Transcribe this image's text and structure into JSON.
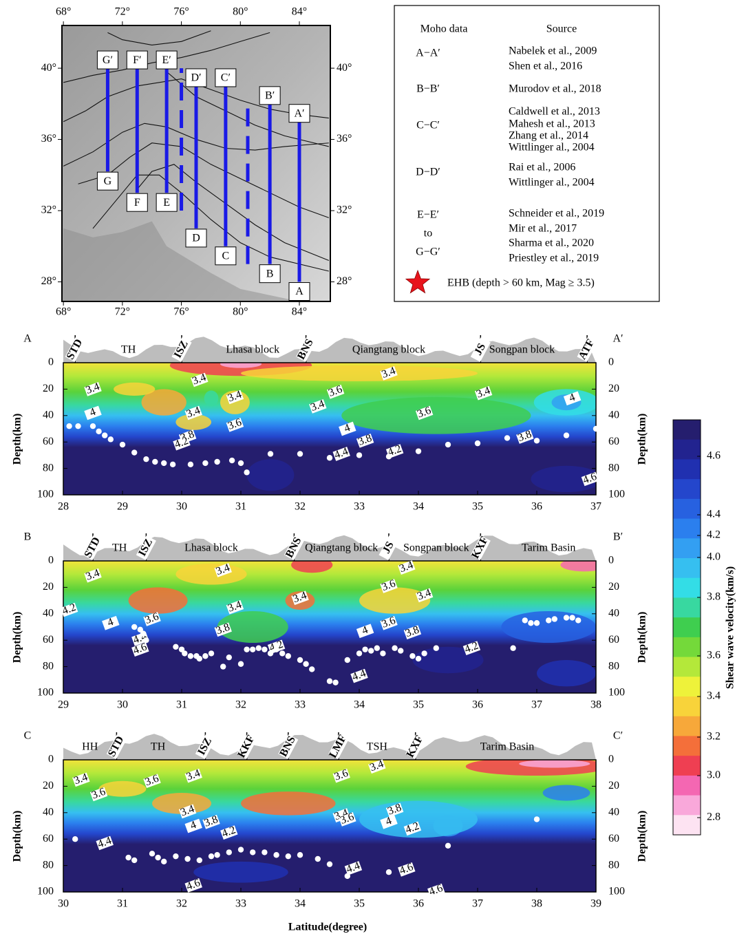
{
  "chart_data": [
    {
      "type": "map",
      "xlim": [
        67.9,
        86.1
      ],
      "ylim": [
        26.9,
        42.4
      ],
      "xticks": [
        {
          "value": 68,
          "label": "68°"
        },
        {
          "value": 72,
          "label": "72°"
        },
        {
          "value": 76,
          "label": "76°"
        },
        {
          "value": 80,
          "label": "80°"
        },
        {
          "value": 84,
          "label": "84°"
        }
      ],
      "yticks": [
        {
          "value": 28,
          "label": "28°"
        },
        {
          "value": 32,
          "label": "32°"
        },
        {
          "value": 36,
          "label": "36°"
        },
        {
          "value": 40,
          "label": "40°"
        }
      ],
      "profile_color": "#1a1ae6",
      "profiles": [
        {
          "start": "G",
          "end": "G′",
          "lon": 71,
          "lat": [
            34.2,
            40
          ]
        },
        {
          "start": "F",
          "end": "F′",
          "lon": 73,
          "lat": [
            33,
            40
          ]
        },
        {
          "start": "E",
          "end": "E′",
          "lon": 75,
          "lat": [
            33,
            40
          ]
        },
        {
          "start": "D",
          "end": "D′",
          "lon": 77,
          "lat": [
            31,
            39
          ]
        },
        {
          "start": "C",
          "end": "C′",
          "lon": 79,
          "lat": [
            30,
            39
          ]
        },
        {
          "start": "B",
          "end": "B′",
          "lon": 82,
          "lat": [
            29,
            38
          ]
        },
        {
          "start": "A",
          "end": "A′",
          "lon": 84,
          "lat": [
            28,
            37
          ]
        }
      ],
      "dashed_profiles": [
        {
          "lon": 76,
          "lat": [
            32,
            40
          ]
        },
        {
          "lon": 80.5,
          "lat": [
            29,
            38
          ]
        }
      ]
    },
    {
      "type": "contour",
      "label": "A",
      "label_end": "A′",
      "xlim": [
        28,
        37
      ],
      "xticks": [
        28,
        29,
        30,
        31,
        32,
        33,
        34,
        35,
        36,
        37
      ],
      "ylim": [
        0,
        100
      ],
      "yticks": [
        0,
        20,
        40,
        60,
        80,
        100
      ],
      "ylabel": "Depth(km)",
      "faults": [
        {
          "name": "STD",
          "lat": 28.2
        },
        {
          "name": "ISZ",
          "lat": 30
        },
        {
          "name": "BNS",
          "lat": 32.1
        },
        {
          "name": "JS",
          "lat": 35.05
        },
        {
          "name": "ATF",
          "lat": 36.85
        }
      ],
      "blocks": [
        {
          "name": "TH",
          "lat": 29.1
        },
        {
          "name": "Lhasa block",
          "lat": 31.2
        },
        {
          "name": "Qiangtang block",
          "lat": 33.5
        },
        {
          "name": "Songpan block",
          "lat": 35.75
        }
      ],
      "contour_labels": [
        3.4,
        3.4,
        3.4,
        3.4,
        3.6,
        4,
        3.8,
        4.2,
        3.4,
        3.6,
        3.4,
        3.4,
        3.6,
        4,
        3.8,
        4.4,
        4.2,
        3.8,
        4,
        4.6
      ],
      "moho": {
        "x": [
          28.1,
          28.25,
          28.5,
          28.6,
          28.7,
          28.8,
          29,
          29.2,
          29.4,
          29.55,
          29.7,
          29.85,
          30.15,
          30.4,
          30.6,
          30.85,
          31,
          31.1,
          31.5,
          32,
          32.5,
          33,
          33.5,
          34,
          34.5,
          35,
          35.5,
          36,
          36.5,
          37
        ],
        "y": [
          48,
          48,
          48,
          52,
          55,
          58,
          62,
          68,
          73,
          75,
          76,
          77,
          77,
          76,
          75,
          74,
          76,
          83,
          69,
          69,
          72,
          70,
          71,
          67,
          62,
          61,
          57,
          59,
          55,
          50
        ]
      }
    },
    {
      "type": "contour",
      "label": "B",
      "label_end": "B′",
      "xlim": [
        29,
        38
      ],
      "xticks": [
        29,
        30,
        31,
        32,
        33,
        34,
        35,
        36,
        37,
        38
      ],
      "ylim": [
        0,
        100
      ],
      "yticks": [
        0,
        20,
        40,
        60,
        80,
        100
      ],
      "ylabel": "Depth(km)",
      "faults": [
        {
          "name": "STD",
          "lat": 29.5
        },
        {
          "name": "ISZ",
          "lat": 30.4
        },
        {
          "name": "BNS",
          "lat": 32.9
        },
        {
          "name": "JS",
          "lat": 34.5
        },
        {
          "name": "KXF",
          "lat": 36.05
        }
      ],
      "blocks": [
        {
          "name": "TH",
          "lat": 29.95
        },
        {
          "name": "Lhasa block",
          "lat": 31.5
        },
        {
          "name": "Qiangtang block",
          "lat": 33.7
        },
        {
          "name": "Songpan block",
          "lat": 35.3
        },
        {
          "name": "Tarim Basin",
          "lat": 37.2
        }
      ],
      "contour_labels": [
        3.4,
        3.4,
        4.2,
        4,
        3.6,
        4.4,
        4.6,
        3.4,
        3.8,
        3.4,
        3.6,
        3.4,
        3.4,
        4,
        3.6,
        3.8,
        4.2,
        4.2,
        4.4
      ],
      "moho": {
        "x": [
          30.2,
          30.3,
          30.35,
          30.4,
          30.9,
          31,
          31.05,
          31.15,
          31.25,
          31.3,
          31.4,
          31.5,
          31.7,
          31.8,
          32,
          32.1,
          32.2,
          32.3,
          32.4,
          32.5,
          32.6,
          32.7,
          32.8,
          33,
          33.1,
          33.2,
          33.5,
          33.6,
          33.8,
          34,
          34.1,
          34.2,
          34.3,
          34.4,
          34.6,
          34.7,
          34.9,
          35,
          35.1,
          35.3,
          36.6,
          36.8,
          36.9,
          37,
          37.2,
          37.3,
          37.5,
          37.6,
          37.7
        ],
        "y": [
          50,
          52,
          55,
          60,
          65,
          67,
          70,
          72,
          72,
          74,
          72,
          70,
          80,
          73,
          78,
          67,
          67,
          66,
          67,
          70,
          67,
          70,
          72,
          75,
          78,
          82,
          91,
          92,
          75,
          70,
          67,
          68,
          66,
          70,
          66,
          68,
          72,
          74,
          70,
          66,
          66,
          45,
          47,
          47,
          45,
          44,
          43,
          43,
          45
        ]
      }
    },
    {
      "type": "contour",
      "label": "C",
      "label_end": "C′",
      "xlim": [
        30,
        39
      ],
      "xticks": [
        30,
        31,
        32,
        33,
        34,
        35,
        36,
        37,
        38,
        39
      ],
      "ylim": [
        0,
        100
      ],
      "yticks": [
        0,
        20,
        40,
        60,
        80,
        100
      ],
      "ylabel": "Depth(km)",
      "xlabel": "Latitude(degree)",
      "faults": [
        {
          "name": "STD",
          "lat": 30.9
        },
        {
          "name": "ISZ",
          "lat": 32.4
        },
        {
          "name": "KKF",
          "lat": 33.1
        },
        {
          "name": "BNS",
          "lat": 33.8
        },
        {
          "name": "LMF",
          "lat": 34.65
        },
        {
          "name": "KXF",
          "lat": 35.95
        }
      ],
      "blocks": [
        {
          "name": "HH",
          "lat": 30.45
        },
        {
          "name": "TH",
          "lat": 31.6
        },
        {
          "name": "TSH",
          "lat": 35.3
        },
        {
          "name": "Tarim Basin",
          "lat": 37.5
        }
      ],
      "contour_labels": [
        3.4,
        3.6,
        3.4,
        3.6,
        3.4,
        4,
        3.8,
        4.2,
        4.4,
        3.6,
        3.4,
        3.4,
        3.6,
        3.8,
        4,
        4.2,
        4.4,
        4.6,
        4.6,
        4.6
      ],
      "moho": {
        "x": [
          30.2,
          31.1,
          31.2,
          31.5,
          31.6,
          31.7,
          31.9,
          32.1,
          32.3,
          32.5,
          32.6,
          32.8,
          33,
          33.2,
          33.4,
          33.6,
          33.8,
          34,
          34.3,
          34.5,
          34.8,
          35.5,
          36.5,
          38
        ],
        "y": [
          60,
          74,
          76,
          71,
          74,
          77,
          73,
          75,
          76,
          73,
          72,
          70,
          68,
          70,
          70,
          72,
          73,
          72,
          75,
          79,
          88,
          85,
          65,
          45
        ]
      }
    },
    {
      "type": "colorbar",
      "label": "Shear wave velocity(km/s)",
      "ticks": [
        4.6,
        4.4,
        4.2,
        {
          "value": 4,
          "label": "4.0"
        },
        3.8,
        3.6,
        3.4,
        3.2,
        {
          "value": 3,
          "label": "3.0"
        },
        2.8
      ],
      "colors": [
        "#251e6e",
        "#22238f",
        "#2030b0",
        "#2446cc",
        "#2761e0",
        "#2b7fee",
        "#339ff2",
        "#36bff0",
        "#33dde6",
        "#38d8a0",
        "#3fce4f",
        "#74d93a",
        "#b4e83a",
        "#eef23a",
        "#f8d33a",
        "#f7a83a",
        "#f46f3a",
        "#ef3f52",
        "#f467b2",
        "#f9a8da",
        "#fde3f2"
      ]
    }
  ],
  "legend": {
    "headers": [
      "Moho data",
      "Source"
    ],
    "rows": [
      {
        "label": [
          "A−A′"
        ],
        "sources": [
          "Nabelek et al., 2009",
          "Shen et al., 2016"
        ]
      },
      {
        "label": [
          "B−B′"
        ],
        "sources": [
          "Murodov et al., 2018"
        ]
      },
      {
        "label": [
          "C−C′"
        ],
        "sources": [
          "Caldwell et al., 2013",
          "Mahesh et al., 2013",
          "Zhang et al., 2014",
          "Wittlinger al., 2004"
        ]
      },
      {
        "label": [
          "D−D′"
        ],
        "sources": [
          "Rai et al., 2006",
          "Wittlinger al., 2004"
        ]
      },
      {
        "label": [
          "E−E′",
          "to",
          "G−G′"
        ],
        "sources": [
          "Schneider et al., 2019",
          "Mir et al., 2017",
          "Sharma et al., 2020",
          "Priestley et al., 2019"
        ]
      }
    ],
    "symbol_label": "EHB (depth > 60 km, Mag ≥ 3.5)"
  }
}
